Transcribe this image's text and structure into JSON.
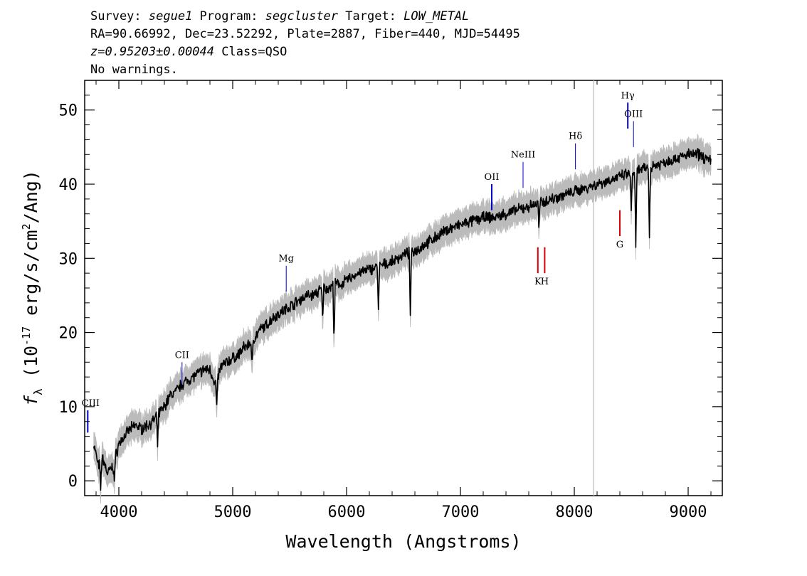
{
  "header": {
    "line1": {
      "survey_label": "Survey: ",
      "survey": "segue1",
      "program_label": " Program: ",
      "program": "segcluster",
      "target_label": " Target: ",
      "target": "LOW_METAL"
    },
    "line2": "RA=90.66992, Dec=23.52292, Plate=2887, Fiber=440, MJD=54495",
    "line3": {
      "redshift": "z=0.95203±0.00044",
      "class": " Class=QSO"
    },
    "line4": "No warnings."
  },
  "chart_data": {
    "type": "line",
    "xlabel": "Wavelength (Angstroms)",
    "ylabel": "f_λ (10^-17 erg/s/cm^2/Ang)",
    "xlim": [
      3700,
      9300
    ],
    "ylim": [
      -2,
      54
    ],
    "x_ticks": [
      4000,
      5000,
      6000,
      7000,
      8000,
      9000
    ],
    "y_ticks": [
      0,
      10,
      20,
      30,
      40,
      50
    ],
    "grid": false,
    "colors": {
      "flux": "#000000",
      "error_band": "#bbbbbb",
      "emission_marker": "#0000cc",
      "absorption_marker": "#dd0000",
      "reference_line": "#bbbbbb"
    },
    "reference_line_x": 8170,
    "series": [
      {
        "x": [
          3780,
          3820,
          3860,
          3900,
          3950,
          4000,
          4050,
          4100,
          4150,
          4200,
          4250,
          4300,
          4350,
          4400,
          4450,
          4500,
          4550,
          4600,
          4650,
          4700,
          4750,
          4800,
          4850,
          4900,
          4950,
          5000,
          5050,
          5100,
          5150,
          5200,
          5250,
          5300,
          5350,
          5400,
          5450,
          5500,
          5550,
          5600,
          5650,
          5700,
          5750,
          5800,
          5850,
          5900,
          5950,
          6000,
          6100,
          6200,
          6300,
          6400,
          6500,
          6600,
          6700,
          6800,
          6900,
          7000,
          7100,
          7200,
          7300,
          7400,
          7500,
          7600,
          7700,
          7800,
          7900,
          8000,
          8100,
          8200,
          8300,
          8400,
          8500,
          8600,
          8700,
          8800,
          8900,
          9000,
          9100,
          9200
        ],
        "y": [
          5,
          2,
          3,
          1,
          2,
          5,
          6,
          7,
          7.5,
          7,
          7.5,
          8,
          9,
          10,
          11.5,
          12,
          13,
          13.5,
          14,
          14.5,
          15,
          15,
          13,
          15.5,
          16,
          16.5,
          17,
          18,
          18.5,
          19.5,
          20.5,
          21,
          22,
          22.5,
          23,
          23.5,
          24,
          24.5,
          25,
          25,
          25.5,
          26,
          26,
          26.5,
          26.5,
          27,
          28,
          28.5,
          29,
          29.5,
          30.5,
          31,
          32,
          33,
          34,
          34.5,
          35,
          35.5,
          35.5,
          36,
          36.5,
          37,
          37.5,
          38,
          38.5,
          39,
          39.5,
          40,
          40.5,
          41,
          41.5,
          42,
          42.5,
          43,
          43.5,
          44,
          44,
          43
        ],
        "error": 1.5
      }
    ],
    "absorption_dips": [
      {
        "x": 3840,
        "y": -1
      },
      {
        "x": 3960,
        "y": 0
      },
      {
        "x": 4340,
        "y": 5
      },
      {
        "x": 4860,
        "y": 10
      },
      {
        "x": 5170,
        "y": 15
      },
      {
        "x": 5790,
        "y": 22
      },
      {
        "x": 5890,
        "y": 19
      },
      {
        "x": 6280,
        "y": 23
      },
      {
        "x": 6560,
        "y": 22
      },
      {
        "x": 7690,
        "y": 34
      },
      {
        "x": 8500,
        "y": 36
      },
      {
        "x": 8540,
        "y": 31
      },
      {
        "x": 8660,
        "y": 33
      }
    ],
    "line_markers": [
      {
        "label": "CIII",
        "x": 3727,
        "y0": 6.5,
        "y1": 9.5,
        "kind": "emission"
      },
      {
        "label": "CII",
        "x": 4555,
        "y0": 13,
        "y1": 16,
        "kind": "emission"
      },
      {
        "label": "Mg",
        "x": 5470,
        "y0": 25.5,
        "y1": 29,
        "kind": "emission"
      },
      {
        "label": "OII",
        "x": 7275,
        "y0": 36.5,
        "y1": 40,
        "kind": "emission"
      },
      {
        "label": "NeIII",
        "x": 7550,
        "y0": 39.5,
        "y1": 43,
        "kind": "emission"
      },
      {
        "label": "Hδ",
        "x": 8010,
        "y0": 42,
        "y1": 45.5,
        "kind": "emission"
      },
      {
        "label": "Hγ",
        "x": 8470,
        "y0": 47.5,
        "y1": 51,
        "kind": "emission"
      },
      {
        "label": "OIII",
        "x": 8520,
        "y0": 45,
        "y1": 48.5,
        "kind": "emission"
      },
      {
        "label": "K",
        "x": 7680,
        "y0": 28,
        "y1": 31.5,
        "kind": "absorption"
      },
      {
        "label": "H",
        "x": 7740,
        "y0": 28,
        "y1": 31.5,
        "kind": "absorption"
      },
      {
        "label": "G",
        "x": 8400,
        "y0": 33,
        "y1": 36.5,
        "kind": "absorption"
      }
    ]
  }
}
